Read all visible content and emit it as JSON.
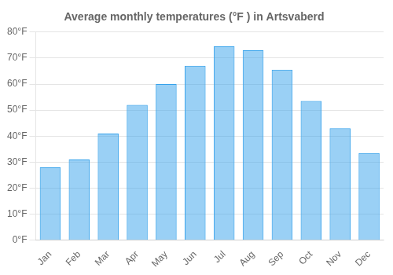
{
  "chart_data": {
    "type": "bar",
    "title": "Average monthly temperatures (°F ) in Artsvaberd",
    "categories": [
      "Jan",
      "Feb",
      "Mar",
      "Apr",
      "May",
      "Jun",
      "Jul",
      "Aug",
      "Sep",
      "Oct",
      "Nov",
      "Dec"
    ],
    "values": [
      28,
      31,
      41,
      52,
      60,
      67,
      74.5,
      73,
      65.5,
      53.5,
      43,
      33.5
    ],
    "ylim": [
      0,
      80
    ],
    "yticks": [
      {
        "value": 0,
        "label": "0°F"
      },
      {
        "value": 10,
        "label": "10°F"
      },
      {
        "value": 20,
        "label": "20°F"
      },
      {
        "value": 30,
        "label": "30°F"
      },
      {
        "value": 40,
        "label": "40°F"
      },
      {
        "value": 50,
        "label": "50°F"
      },
      {
        "value": 60,
        "label": "60°F"
      },
      {
        "value": 70,
        "label": "70°F"
      },
      {
        "value": 80,
        "label": "80°F"
      }
    ],
    "grid": true
  }
}
